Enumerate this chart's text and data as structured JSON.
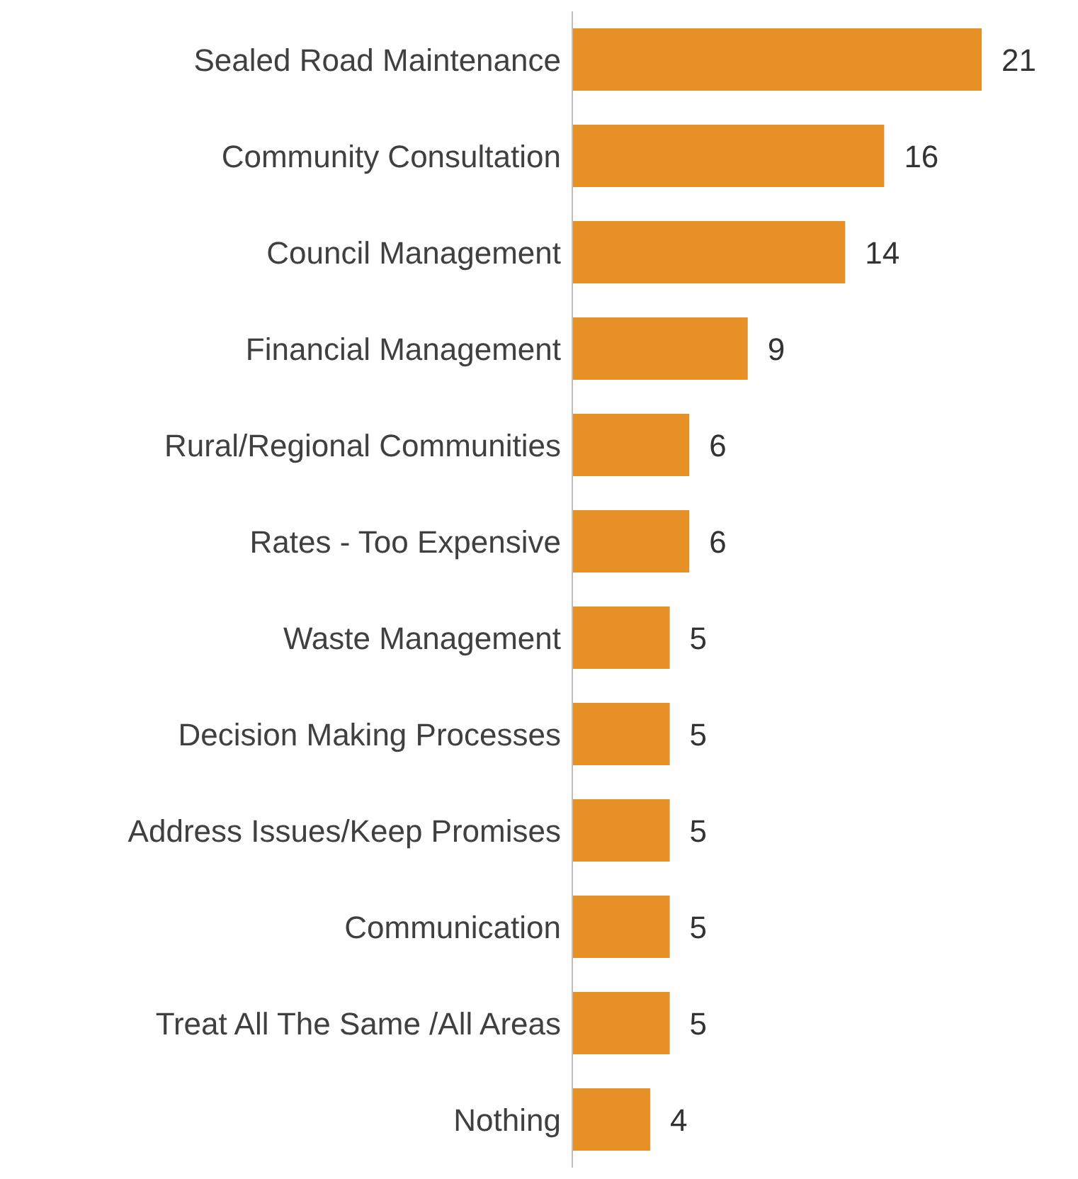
{
  "chart_data": {
    "type": "bar",
    "orientation": "horizontal",
    "categories": [
      "Sealed Road Maintenance",
      "Community Consultation",
      "Council Management",
      "Financial Management",
      "Rural/Regional Communities",
      "Rates - Too Expensive",
      "Waste Management",
      "Decision Making Processes",
      "Address Issues/Keep Promises",
      "Communication",
      "Treat All The Same /All Areas",
      "Nothing"
    ],
    "values": [
      21,
      16,
      14,
      9,
      6,
      6,
      5,
      5,
      5,
      5,
      5,
      4
    ],
    "color": "#e69026",
    "data_labels": true,
    "tick_labels": "y"
  }
}
